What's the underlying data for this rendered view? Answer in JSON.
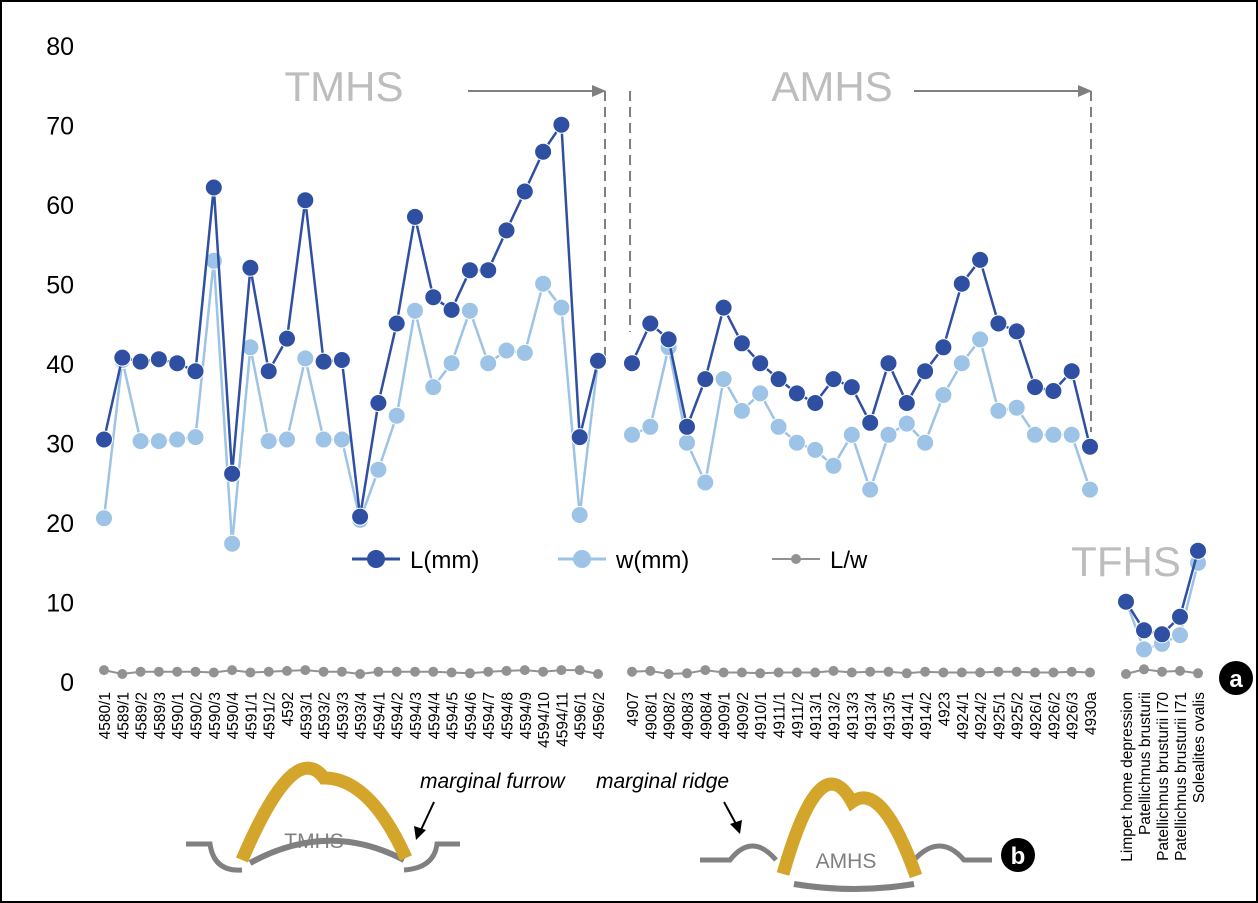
{
  "chart_data": {
    "type": "line",
    "ylim": [
      0,
      80
    ],
    "yticks": [
      0,
      10,
      20,
      30,
      40,
      50,
      60,
      70,
      80
    ],
    "grid": false,
    "legend_position": "center",
    "categories": [
      "4580/1",
      "4589/1",
      "4589/2",
      "4589/3",
      "4590/1",
      "4590/2",
      "4590/3",
      "4590/4",
      "4591/1",
      "4591/2",
      "4592",
      "4593/1",
      "4593/2",
      "4593/3",
      "4593/4",
      "4594/1",
      "4594/2",
      "4594/3",
      "4594/4",
      "4594/5",
      "4594/6",
      "4594/7",
      "4594/8",
      "4594/9",
      "4594/10",
      "4594/11",
      "4596/1",
      "4596/2",
      "4907",
      "4908/1",
      "4908/2",
      "4908/3",
      "4908/4",
      "4909/1",
      "4909/2",
      "4910/1",
      "4911/1",
      "4911/2",
      "4913/1",
      "4913/2",
      "4913/3",
      "4913/4",
      "4913/5",
      "4914/1",
      "4914/2",
      "4923",
      "4924/1",
      "4924/2",
      "4925/1",
      "4925/2",
      "4926/1",
      "4926/2",
      "4926/3",
      "4930a",
      "Limpet home depression",
      "Patellichnus brusturii",
      "Patellichnus brusturii I70",
      "Patellichnus brusturii I71",
      "Solealites ovalis"
    ],
    "groups": [
      {
        "label": "TMHS",
        "start": 0,
        "end": 27
      },
      {
        "label": "AMHS",
        "start": 28,
        "end": 53
      },
      {
        "label": "TFHS",
        "start": 54,
        "end": 58
      }
    ],
    "series": [
      {
        "name": "L(mm)",
        "color": "#2f4fa3",
        "values": [
          30.5,
          40.8,
          40.3,
          40.6,
          40.1,
          39.1,
          62.2,
          26.2,
          52.1,
          39.1,
          43.2,
          60.6,
          40.3,
          40.5,
          20.8,
          35.1,
          45.1,
          58.5,
          48.4,
          46.8,
          51.8,
          51.8,
          56.8,
          61.7,
          66.7,
          70.1,
          30.8,
          40.4,
          40.1,
          45.1,
          43.1,
          32.1,
          38.1,
          47.1,
          42.6,
          40.1,
          38.1,
          36.3,
          35.1,
          38.1,
          37.1,
          32.6,
          40.1,
          35.1,
          39.1,
          42.1,
          50.1,
          53.1,
          45.1,
          44.1,
          37.1,
          36.6,
          39.1,
          29.6,
          10.1,
          6.5,
          6.0,
          8.2,
          16.5
        ]
      },
      {
        "name": "w(mm)",
        "color": "#9dc3e6",
        "values": [
          20.6,
          40.5,
          30.3,
          30.3,
          30.5,
          30.8,
          53.0,
          17.4,
          42.1,
          30.3,
          30.5,
          40.7,
          30.5,
          30.5,
          20.4,
          26.7,
          33.5,
          46.7,
          37.1,
          40.1,
          46.7,
          40.1,
          41.7,
          41.4,
          50.1,
          47.1,
          21.0,
          40.4,
          31.1,
          32.1,
          42.1,
          30.1,
          25.1,
          38.1,
          34.1,
          36.3,
          32.1,
          30.1,
          29.2,
          27.2,
          31.1,
          24.2,
          31.1,
          32.5,
          30.1,
          36.1,
          40.1,
          43.1,
          34.1,
          34.5,
          31.1,
          31.1,
          31.1,
          24.2,
          10.2,
          4.1,
          4.8,
          5.9,
          15.0
        ]
      },
      {
        "name": "L/w",
        "color": "#929292",
        "values": [
          1.5,
          1.0,
          1.3,
          1.3,
          1.3,
          1.3,
          1.2,
          1.5,
          1.2,
          1.3,
          1.4,
          1.5,
          1.3,
          1.3,
          1.0,
          1.3,
          1.3,
          1.3,
          1.3,
          1.2,
          1.1,
          1.3,
          1.4,
          1.5,
          1.3,
          1.5,
          1.5,
          1.0,
          1.3,
          1.4,
          1.0,
          1.1,
          1.5,
          1.2,
          1.2,
          1.1,
          1.2,
          1.2,
          1.2,
          1.4,
          1.2,
          1.3,
          1.3,
          1.1,
          1.3,
          1.2,
          1.2,
          1.2,
          1.3,
          1.3,
          1.2,
          1.2,
          1.3,
          1.2,
          1.0,
          1.6,
          1.3,
          1.4,
          1.1
        ]
      }
    ],
    "annotations": {
      "tmhs_label": "TMHS",
      "amhs_label": "AMHS",
      "tfhs_label": "TFHS",
      "panel_a": "a",
      "panel_b": "b"
    },
    "diagram": {
      "marginal_furrow": "marginal furrow",
      "marginal_ridge": "marginal ridge",
      "tmhs_label": "TMHS",
      "amhs_label": "AMHS",
      "shell_color": "#d4a52b",
      "rock_color": "#808080"
    }
  }
}
